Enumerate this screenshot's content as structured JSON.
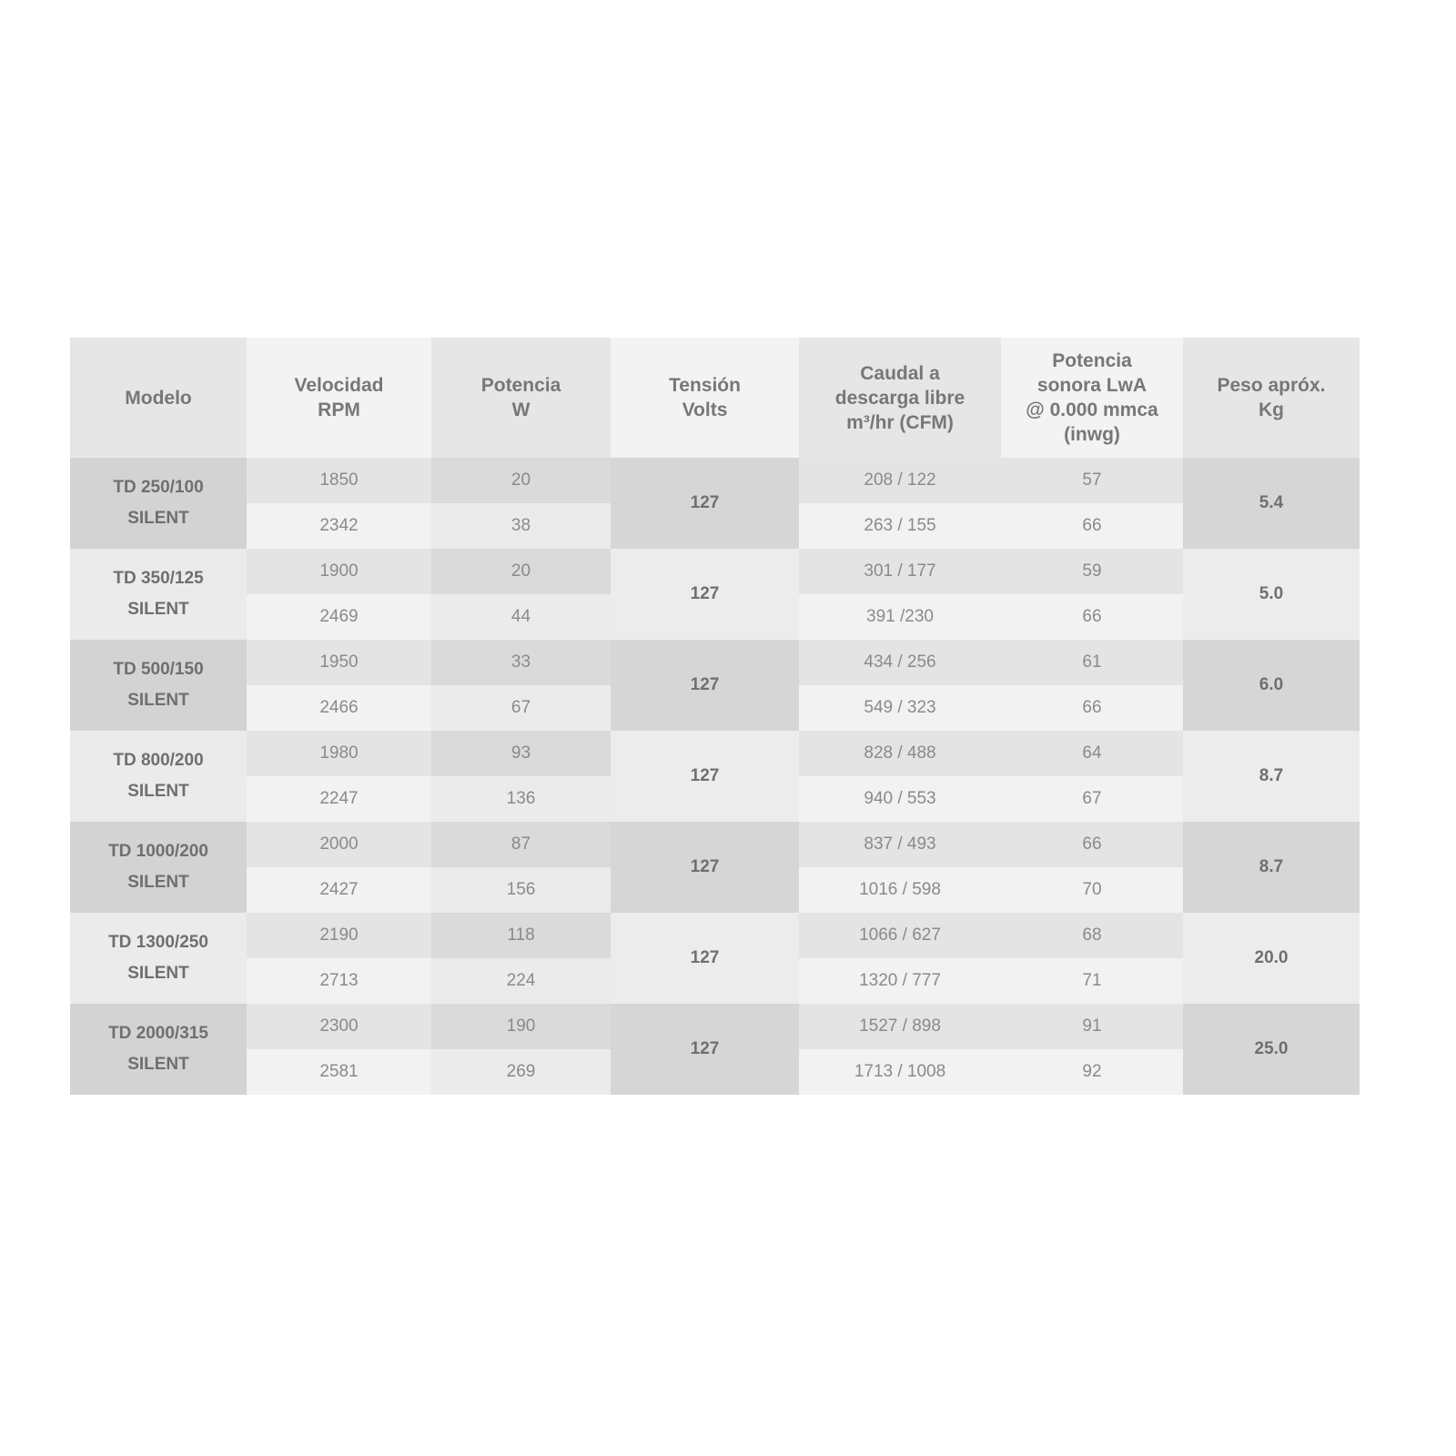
{
  "headers": [
    "Modelo",
    "Velocidad\nRPM",
    "Potencia\nW",
    "Tensión\nVolts",
    "Caudal a\ndescarga libre\nm³/hr (CFM)",
    "Potencia\nsonora LwA\n@ 0.000 mmca\n(inwg)",
    "Peso apróx.\nKg"
  ],
  "rows": [
    {
      "model": "TD 250/100\nSILENT",
      "tension": "127",
      "peso": "5.4",
      "sub": [
        [
          "1850",
          "20",
          "208 / 122",
          "57"
        ],
        [
          "2342",
          "38",
          "263 / 155",
          "66"
        ]
      ]
    },
    {
      "model": "TD 350/125\nSILENT",
      "tension": "127",
      "peso": "5.0",
      "sub": [
        [
          "1900",
          "20",
          "301 / 177",
          "59"
        ],
        [
          "2469",
          "44",
          "391 /230",
          "66"
        ]
      ]
    },
    {
      "model": "TD 500/150\nSILENT",
      "tension": "127",
      "peso": "6.0",
      "sub": [
        [
          "1950",
          "33",
          "434 / 256",
          "61"
        ],
        [
          "2466",
          "67",
          "549 / 323",
          "66"
        ]
      ]
    },
    {
      "model": "TD 800/200\nSILENT",
      "tension": "127",
      "peso": "8.7",
      "sub": [
        [
          "1980",
          "93",
          "828 / 488",
          "64"
        ],
        [
          "2247",
          "136",
          "940 / 553",
          "67"
        ]
      ]
    },
    {
      "model": "TD 1000/200\nSILENT",
      "tension": "127",
      "peso": "8.7",
      "sub": [
        [
          "2000",
          "87",
          "837 / 493",
          "66"
        ],
        [
          "2427",
          "156",
          "1016 / 598",
          "70"
        ]
      ]
    },
    {
      "model": "TD 1300/250\nSILENT",
      "tension": "127",
      "peso": "20.0",
      "sub": [
        [
          "2190",
          "118",
          "1066 / 627",
          "68"
        ],
        [
          "2713",
          "224",
          "1320 / 777",
          "71"
        ]
      ]
    },
    {
      "model": "TD 2000/315\nSILENT",
      "tension": "127",
      "peso": "25.0",
      "sub": [
        [
          "2300",
          "190",
          "1527 / 898",
          "91"
        ],
        [
          "2581",
          "269",
          "1713 / 1008",
          "92"
        ]
      ]
    }
  ],
  "colors": {
    "dark_group": "#d6d6d6",
    "light_group": "#ececec",
    "row1": "#e4e4e4",
    "row2": "#f2f2f2",
    "pot_row1": "#dadada",
    "pot_row2": "#ebebeb",
    "text": "#8a8a8a"
  }
}
